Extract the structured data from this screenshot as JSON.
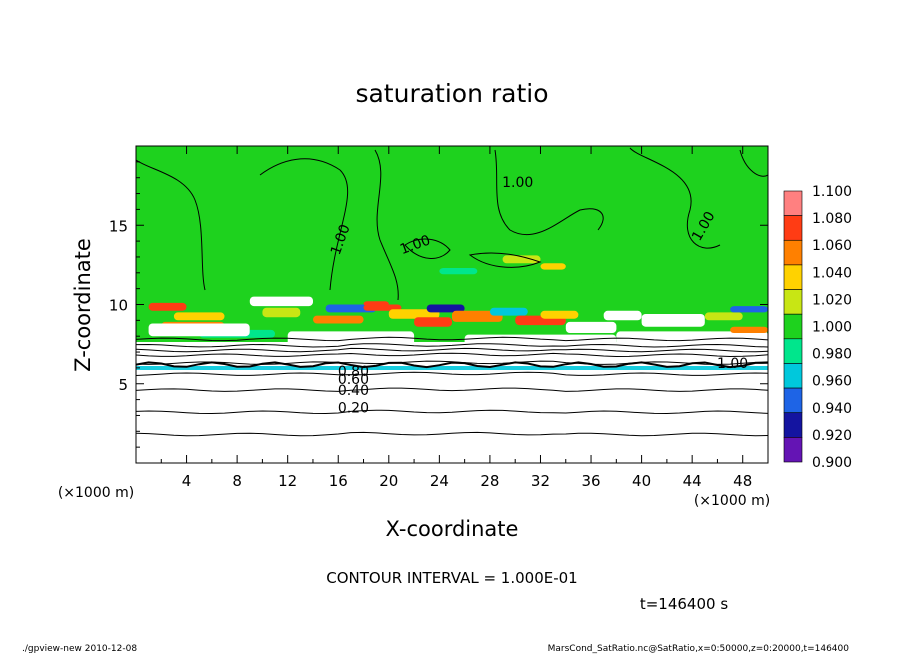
{
  "chart_data": {
    "type": "heatmap",
    "title": "saturation ratio",
    "xlabel": "X-coordinate",
    "ylabel": "Z-coordinate",
    "x_unit_left": "(×1000 m)",
    "x_unit_right": "(×1000 m)",
    "xlim": [
      0,
      50
    ],
    "ylim": [
      0,
      20
    ],
    "x_ticks": [
      4,
      8,
      12,
      16,
      20,
      24,
      28,
      32,
      36,
      40,
      44,
      48
    ],
    "x_tick_labels": [
      "4",
      "8",
      "12",
      "16",
      "20",
      "24",
      "28",
      "32",
      "36",
      "40",
      "44",
      "48"
    ],
    "y_ticks": [
      5,
      10,
      15
    ],
    "y_tick_labels": [
      "5",
      "10",
      "15"
    ],
    "colorbar": {
      "labels": [
        "1.100",
        "1.080",
        "1.060",
        "1.040",
        "1.020",
        "1.000",
        "0.980",
        "0.960",
        "0.940",
        "0.920",
        "0.900"
      ],
      "colors": [
        "#ff8080",
        "#ff3c14",
        "#ff8000",
        "#ffd200",
        "#c8e614",
        "#1ed21e",
        "#00e68c",
        "#00c8dc",
        "#1e64e6",
        "#1414a0",
        "#6414b4"
      ]
    },
    "contour_labels": [
      "1.00",
      "1.00",
      "1.00",
      "1.00",
      "1.00",
      "0.80",
      "0.60",
      "0.40",
      "0.20"
    ],
    "contour_levels_low": [
      0.9,
      0.8,
      0.7,
      0.6,
      0.5,
      0.4,
      0.3,
      0.2,
      0.1
    ],
    "contour_interval": "CONTOUR INTERVAL = 1.000E-01",
    "time_label": "t=146400 s"
  },
  "footer": {
    "left": "./gpview-new  2010-12-08",
    "right": "MarsCond_SatRatio.nc@SatRatio,x=0:50000,z=0:20000,t=146400"
  }
}
